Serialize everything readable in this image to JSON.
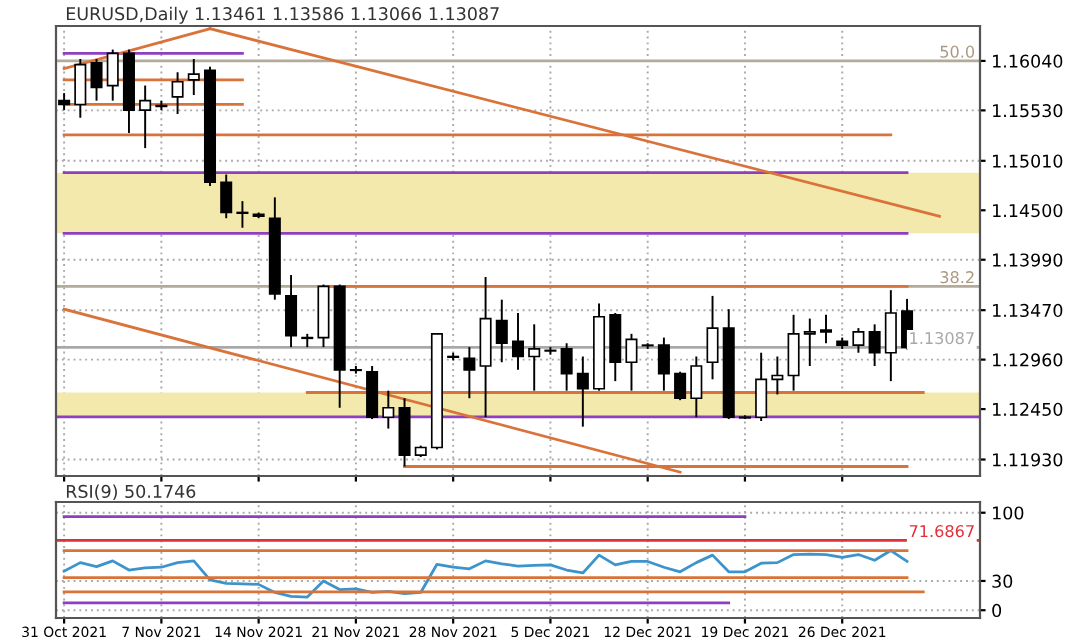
{
  "chart_data": [
    {
      "type": "candlestick",
      "title": "EURUSD,Daily 1.13461 1.13586 1.13066 1.13087",
      "ohlc": [
        [
          1.1563,
          1.15708,
          1.15532,
          1.15591
        ],
        [
          1.15591,
          1.1606,
          1.15454,
          1.16001
        ],
        [
          1.1602,
          1.1606,
          1.1563,
          1.15766
        ],
        [
          1.15786,
          1.16157,
          1.1563,
          1.16118
        ],
        [
          1.16118,
          1.16157,
          1.15297,
          1.15532
        ],
        [
          1.15532,
          1.15786,
          1.15141,
          1.1563
        ],
        [
          1.15571,
          1.1563,
          1.15532,
          1.1558
        ],
        [
          1.15669,
          1.15923,
          1.15493,
          1.15825
        ],
        [
          1.15845,
          1.1606,
          1.15688,
          1.15903
        ],
        [
          1.15942,
          1.15981,
          1.1475,
          1.14789
        ],
        [
          1.14789,
          1.14868,
          1.14418,
          1.14477
        ],
        [
          1.14477,
          1.14594,
          1.1432,
          1.1447
        ],
        [
          1.14457,
          1.14477,
          1.14418,
          1.14438
        ],
        [
          1.14418,
          1.14633,
          1.13578,
          1.13637
        ],
        [
          1.13617,
          1.13832,
          1.13089,
          1.13207
        ],
        [
          1.13187,
          1.13226,
          1.13089,
          1.1318
        ],
        [
          1.13187,
          1.13734,
          1.13089,
          1.13715
        ],
        [
          1.13715,
          1.13734,
          1.12464,
          1.12855
        ],
        [
          1.12855,
          1.12894,
          1.12816,
          1.1285
        ],
        [
          1.12835,
          1.12894,
          1.12347,
          1.12366
        ],
        [
          1.12366,
          1.1264,
          1.12249,
          1.12464
        ],
        [
          1.12464,
          1.12562,
          1.11858,
          1.11976
        ],
        [
          1.11976,
          1.12073,
          1.11956,
          1.12054
        ],
        [
          1.12054,
          1.13226,
          1.12034,
          1.13226
        ],
        [
          1.12992,
          1.13031,
          1.12952,
          1.12985
        ],
        [
          1.12972,
          1.13089,
          1.12562,
          1.12855
        ],
        [
          1.12894,
          1.13812,
          1.12366,
          1.13383
        ],
        [
          1.13363,
          1.13578,
          1.12933,
          1.13129
        ],
        [
          1.13148,
          1.13441,
          1.12855,
          1.12992
        ],
        [
          1.12992,
          1.13324,
          1.1264,
          1.1307
        ],
        [
          1.1305,
          1.13089,
          1.13011,
          1.13055
        ],
        [
          1.1307,
          1.13129,
          1.1264,
          1.12816
        ],
        [
          1.12816,
          1.12992,
          1.12269,
          1.1266
        ],
        [
          1.1266,
          1.13539,
          1.1264,
          1.13402
        ],
        [
          1.13422,
          1.13441,
          1.12738,
          1.12933
        ],
        [
          1.12933,
          1.13226,
          1.1264,
          1.13168
        ],
        [
          1.13109,
          1.13129,
          1.1307,
          1.13105
        ],
        [
          1.13109,
          1.13187,
          1.1264,
          1.12816
        ],
        [
          1.12816,
          1.12835,
          1.12542,
          1.12562
        ],
        [
          1.12562,
          1.12992,
          1.12366,
          1.12894
        ],
        [
          1.12933,
          1.13617,
          1.12757,
          1.13285
        ],
        [
          1.13285,
          1.1348,
          1.12347,
          1.12366
        ],
        [
          1.12366,
          1.12386,
          1.12347,
          1.1236
        ],
        [
          1.12366,
          1.13031,
          1.12327,
          1.12757
        ],
        [
          1.12757,
          1.12992,
          1.12601,
          1.12796
        ],
        [
          1.12796,
          1.13422,
          1.1264,
          1.13226
        ],
        [
          1.13226,
          1.13383,
          1.12894,
          1.13246
        ],
        [
          1.13265,
          1.13422,
          1.13129,
          1.13246
        ],
        [
          1.13148,
          1.13187,
          1.1307,
          1.13109
        ],
        [
          1.13109,
          1.13285,
          1.13031,
          1.13246
        ],
        [
          1.13246,
          1.13324,
          1.12894,
          1.13031
        ],
        [
          1.13031,
          1.13676,
          1.12738,
          1.13441
        ],
        [
          1.13461,
          1.13586,
          1.13066,
          1.13087
        ],
        null,
        null,
        null,
        null
      ],
      "series": [
        {
          "type": "line",
          "color": "#8e3fc0",
          "values": [
            1.16118,
            null,
            null,
            null,
            null,
            null,
            null,
            null,
            null,
            null,
            null,
            1.16118,
            null,
            null,
            null,
            null,
            null,
            null,
            null,
            null,
            null,
            null,
            null,
            null,
            null,
            null,
            null,
            null,
            null,
            null,
            null,
            null,
            null,
            null,
            null,
            null,
            null,
            null,
            null,
            null,
            null,
            null,
            null,
            null,
            null,
            null,
            null,
            null,
            null,
            null,
            null,
            null,
            null,
            null,
            null,
            null,
            null
          ]
        },
        {
          "type": "line",
          "color": "#d9733a",
          "values": [
            1.15845,
            null,
            null,
            null,
            null,
            null,
            null,
            null,
            null,
            null,
            null,
            1.15845,
            null,
            null,
            null,
            null,
            null,
            null,
            null,
            null,
            null,
            null,
            null,
            null,
            null,
            null,
            null,
            null,
            null,
            null,
            null,
            null,
            null,
            null,
            null,
            null,
            null,
            null,
            null,
            null,
            null,
            null,
            null,
            null,
            null,
            null,
            null,
            null,
            null,
            null,
            null,
            null,
            null,
            null,
            null,
            null,
            null
          ]
        },
        {
          "type": "line",
          "color": "#d9733a",
          "values": [
            1.15591,
            null,
            null,
            null,
            null,
            null,
            null,
            null,
            null,
            null,
            null,
            1.15591,
            null,
            null,
            null,
            null,
            null,
            null,
            null,
            null,
            null,
            null,
            null,
            null,
            null,
            null,
            null,
            null,
            null,
            null,
            null,
            null,
            null,
            null,
            null,
            null,
            null,
            null,
            null,
            null,
            null,
            null,
            null,
            null,
            null,
            null,
            null,
            null,
            null,
            null,
            null,
            null,
            null,
            null,
            null,
            null,
            null
          ]
        },
        {
          "type": "line",
          "color": "#d9733a",
          "values": [
            1.15278,
            null,
            null,
            null,
            null,
            null,
            null,
            null,
            null,
            null,
            null,
            null,
            null,
            null,
            null,
            null,
            null,
            null,
            null,
            null,
            null,
            null,
            null,
            null,
            null,
            null,
            null,
            null,
            null,
            null,
            null,
            null,
            null,
            null,
            null,
            null,
            null,
            null,
            null,
            null,
            null,
            null,
            null,
            null,
            null,
            null,
            null,
            null,
            null,
            null,
            null,
            1.15278,
            null,
            null,
            null,
            null,
            null
          ]
        },
        {
          "type": "line",
          "color": "#8e3fc0",
          "values": [
            1.14887,
            null,
            null,
            null,
            null,
            null,
            null,
            null,
            null,
            null,
            null,
            null,
            null,
            null,
            null,
            null,
            null,
            null,
            null,
            null,
            null,
            null,
            null,
            null,
            null,
            null,
            null,
            null,
            null,
            null,
            null,
            null,
            null,
            null,
            null,
            null,
            null,
            null,
            null,
            null,
            null,
            null,
            null,
            null,
            null,
            null,
            null,
            null,
            null,
            null,
            null,
            null,
            1.14887,
            null,
            null,
            null,
            null
          ]
        },
        {
          "type": "line",
          "color": "#8e3fc0",
          "values": [
            1.14262,
            null,
            null,
            null,
            null,
            null,
            null,
            null,
            null,
            null,
            null,
            null,
            null,
            null,
            null,
            null,
            null,
            null,
            null,
            null,
            null,
            null,
            null,
            null,
            null,
            null,
            null,
            null,
            null,
            null,
            null,
            null,
            null,
            null,
            null,
            null,
            null,
            null,
            null,
            null,
            null,
            null,
            null,
            null,
            null,
            null,
            null,
            null,
            null,
            null,
            null,
            null,
            1.14262,
            null,
            null,
            null,
            null
          ]
        },
        {
          "type": "line",
          "color": "#d9733a",
          "values": [
            null,
            null,
            null,
            null,
            null,
            null,
            null,
            null,
            null,
            null,
            null,
            null,
            null,
            null,
            null,
            null,
            1.13715,
            null,
            null,
            null,
            null,
            null,
            null,
            null,
            null,
            null,
            null,
            null,
            null,
            null,
            null,
            null,
            null,
            null,
            null,
            null,
            null,
            null,
            null,
            null,
            null,
            null,
            null,
            null,
            null,
            null,
            null,
            null,
            null,
            null,
            null,
            null,
            1.13715,
            null,
            null,
            null,
            null
          ]
        },
        {
          "type": "line",
          "color": "#d9733a",
          "values": [
            null,
            null,
            null,
            null,
            null,
            null,
            null,
            null,
            null,
            null,
            null,
            null,
            null,
            null,
            null,
            1.12621,
            null,
            null,
            null,
            null,
            null,
            null,
            null,
            null,
            null,
            null,
            null,
            null,
            null,
            null,
            null,
            null,
            null,
            null,
            null,
            null,
            null,
            null,
            null,
            null,
            null,
            null,
            null,
            null,
            null,
            null,
            null,
            null,
            null,
            null,
            null,
            null,
            null,
            1.12621,
            null,
            null,
            null
          ]
        },
        {
          "type": "line",
          "color": "#d9733a",
          "values": [
            null,
            null,
            null,
            null,
            null,
            null,
            null,
            null,
            null,
            null,
            null,
            null,
            null,
            null,
            null,
            null,
            null,
            null,
            null,
            null,
            null,
            1.11858,
            null,
            null,
            null,
            null,
            null,
            null,
            null,
            null,
            null,
            null,
            null,
            null,
            null,
            null,
            null,
            null,
            null,
            null,
            null,
            null,
            null,
            null,
            null,
            null,
            null,
            null,
            null,
            null,
            null,
            null,
            1.11858,
            null,
            null,
            null,
            null
          ]
        },
        {
          "type": "line",
          "color": "#d9733a",
          "values": [
            1.15962,
            null,
            null,
            null,
            null,
            null,
            null,
            null,
            null,
            1.16372,
            null,
            null,
            null,
            null,
            null,
            null,
            null,
            null,
            null,
            null,
            null,
            null,
            null,
            null,
            null,
            null,
            null,
            null,
            null,
            null,
            null,
            null,
            null,
            null,
            null,
            null,
            null,
            null,
            null,
            null,
            null,
            null,
            null,
            null,
            null,
            null,
            null,
            null,
            null,
            null,
            null,
            null,
            null,
            null,
            null,
            null,
            null
          ]
        },
        {
          "type": "line",
          "color": "#d9733a",
          "values": [
            null,
            null,
            null,
            null,
            null,
            null,
            null,
            null,
            null,
            1.16372,
            null,
            null,
            null,
            null,
            null,
            null,
            null,
            null,
            null,
            null,
            null,
            null,
            null,
            null,
            null,
            null,
            null,
            null,
            null,
            null,
            null,
            null,
            null,
            null,
            null,
            null,
            null,
            null,
            null,
            null,
            null,
            null,
            null,
            null,
            null,
            null,
            null,
            null,
            null,
            null,
            null,
            null,
            null,
            null,
            1.14438,
            null,
            null
          ]
        },
        {
          "type": "line",
          "color": "#d9733a",
          "values": [
            1.1348,
            null,
            null,
            null,
            null,
            null,
            null,
            null,
            null,
            null,
            null,
            null,
            null,
            null,
            null,
            null,
            null,
            null,
            null,
            null,
            null,
            null,
            null,
            null,
            null,
            null,
            null,
            null,
            null,
            null,
            null,
            null,
            null,
            null,
            null,
            null,
            null,
            null,
            1.118,
            null,
            null,
            null,
            null,
            null,
            null,
            null,
            null,
            null,
            null,
            null,
            null,
            null,
            null,
            null,
            null,
            null,
            null
          ]
        }
      ],
      "bands": [
        {
          "axis": "y",
          "from": 1.14262,
          "to": 1.14887,
          "color": "#f3e9ac"
        },
        {
          "axis": "y",
          "from": 1.1237,
          "to": 1.12621,
          "color": "#f3e9ac"
        }
      ],
      "annotations": [
        {
          "text": "50.0",
          "y": 1.1604
        },
        {
          "text": "38.2",
          "y": 1.13715
        }
      ],
      "ref_lines": [
        {
          "axis": "y",
          "value": 1.1604,
          "color": "#b4aa9a"
        },
        {
          "axis": "y",
          "value": 1.13715,
          "color": "#b4aa9a"
        },
        {
          "axis": "y",
          "value": 1.13087,
          "label": "1.13087",
          "color": "#a8a8a8"
        },
        {
          "axis": "y",
          "value": 1.1237,
          "color": "#8e3fc0"
        }
      ],
      "ylim": [
        1.1176,
        1.164
      ],
      "yticks": [
        {
          "value": 1.1193,
          "label": "1.11930"
        },
        {
          "value": 1.1245,
          "label": "1.12450"
        },
        {
          "value": 1.1296,
          "label": "1.12960"
        },
        {
          "value": 1.1347,
          "label": "1.13470"
        },
        {
          "value": 1.1399,
          "label": "1.13990"
        },
        {
          "value": 1.145,
          "label": "1.14500"
        },
        {
          "value": 1.1501,
          "label": "1.15010"
        },
        {
          "value": 1.1553,
          "label": "1.15530"
        },
        {
          "value": 1.1604,
          "label": "1.16040"
        }
      ],
      "tick_labels": "y",
      "grid": true,
      "legend": false
    },
    {
      "type": "line",
      "title": "RSI(9) 50.1746",
      "categories": [
        "31 Oct 2021",
        null,
        null,
        null,
        null,
        null,
        "7 Nov 2021",
        null,
        null,
        null,
        null,
        null,
        "14 Nov 2021",
        null,
        null,
        null,
        null,
        null,
        "21 Nov 2021",
        null,
        null,
        null,
        null,
        null,
        "28 Nov 2021",
        null,
        null,
        null,
        null,
        null,
        "5 Dec 2021",
        null,
        null,
        null,
        null,
        null,
        "12 Dec 2021",
        null,
        null,
        null,
        null,
        null,
        "19 Dec 2021",
        null,
        null,
        null,
        null,
        null,
        "26 Dec 2021",
        null,
        null,
        null,
        null,
        null,
        null,
        null,
        null
      ],
      "series": [
        {
          "color": "#3d94cc",
          "values": [
            40.0,
            48.8,
            44.7,
            50.6,
            41.2,
            43.5,
            44.1,
            48.8,
            50.6,
            31.2,
            27.6,
            27.1,
            26.5,
            18.2,
            14.1,
            13.5,
            30.0,
            21.2,
            21.8,
            18.2,
            19.4,
            17.1,
            18.2,
            47.1,
            44.1,
            42.4,
            50.6,
            47.6,
            45.3,
            45.9,
            46.5,
            41.2,
            38.2,
            56.5,
            46.5,
            50.0,
            50.0,
            44.1,
            39.4,
            48.8,
            56.5,
            39.4,
            39.4,
            48.2,
            48.8,
            57.1,
            57.6,
            57.1,
            54.1,
            57.1,
            51.2,
            61.2,
            50.17,
            null,
            null,
            null,
            null
          ]
        },
        {
          "color": "#8e3fc0",
          "values": [
            95.9,
            null,
            null,
            null,
            null,
            null,
            null,
            null,
            null,
            null,
            null,
            null,
            null,
            null,
            null,
            null,
            null,
            null,
            null,
            null,
            null,
            null,
            null,
            null,
            null,
            null,
            null,
            null,
            null,
            null,
            null,
            null,
            null,
            null,
            null,
            null,
            null,
            null,
            null,
            null,
            null,
            null,
            95.9,
            null,
            null,
            null,
            null,
            null,
            null,
            null,
            null,
            null,
            null,
            null,
            null,
            null,
            null
          ]
        },
        {
          "color": "#d9733a",
          "values": [
            61.2,
            null,
            null,
            null,
            null,
            null,
            null,
            null,
            null,
            null,
            null,
            null,
            null,
            null,
            null,
            null,
            null,
            null,
            null,
            null,
            null,
            null,
            null,
            null,
            null,
            null,
            null,
            null,
            null,
            null,
            null,
            null,
            null,
            null,
            null,
            null,
            null,
            null,
            null,
            null,
            null,
            null,
            null,
            null,
            null,
            null,
            null,
            null,
            null,
            null,
            null,
            null,
            61.2,
            null,
            null,
            null,
            null
          ]
        },
        {
          "color": "#d9733a",
          "values": [
            33.5,
            null,
            null,
            null,
            null,
            null,
            null,
            null,
            null,
            null,
            null,
            null,
            null,
            null,
            null,
            null,
            null,
            null,
            null,
            null,
            null,
            null,
            null,
            null,
            null,
            null,
            null,
            null,
            null,
            null,
            null,
            null,
            null,
            null,
            null,
            null,
            null,
            null,
            null,
            null,
            null,
            null,
            null,
            null,
            null,
            null,
            null,
            null,
            null,
            null,
            null,
            null,
            33.5,
            null,
            null,
            null,
            null
          ]
        },
        {
          "color": "#d9733a",
          "values": [
            18.8,
            null,
            null,
            null,
            null,
            null,
            null,
            null,
            null,
            null,
            null,
            null,
            null,
            null,
            null,
            null,
            null,
            null,
            null,
            null,
            null,
            null,
            null,
            null,
            null,
            null,
            null,
            null,
            null,
            null,
            null,
            null,
            null,
            null,
            null,
            null,
            null,
            null,
            null,
            null,
            null,
            null,
            null,
            null,
            null,
            null,
            null,
            null,
            null,
            null,
            null,
            null,
            null,
            18.8,
            null,
            null,
            null
          ]
        },
        {
          "color": "#8e3fc0",
          "values": [
            7.6,
            null,
            null,
            null,
            null,
            null,
            null,
            null,
            null,
            null,
            null,
            null,
            null,
            null,
            null,
            null,
            null,
            null,
            null,
            null,
            null,
            null,
            null,
            null,
            null,
            null,
            null,
            null,
            null,
            null,
            null,
            null,
            null,
            null,
            null,
            null,
            null,
            null,
            null,
            null,
            null,
            7.6,
            null,
            null,
            null,
            null,
            null,
            null,
            null,
            null,
            null,
            null,
            null,
            null,
            null,
            null,
            null
          ]
        }
      ],
      "ref_lines": [
        {
          "axis": "y",
          "value": 71.6867,
          "label": "71.6867",
          "color": "#e0303a"
        }
      ],
      "ylim": [
        -8,
        111
      ],
      "yticks": [
        0,
        30,
        100
      ],
      "grid": true,
      "legend": false
    }
  ]
}
